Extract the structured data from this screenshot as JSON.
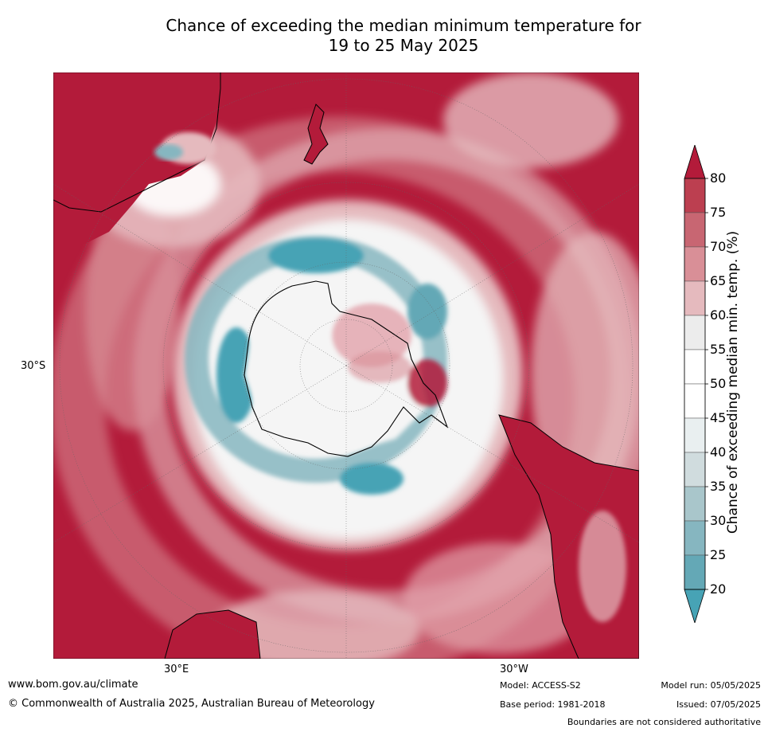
{
  "title_line1": "Chance of exceeding the median minimum temperature for",
  "title_line2": "19 to 25 May 2025",
  "map": {
    "projection": "south-polar-stereographic",
    "lat_labels": {
      "left": "30°S",
      "bottom_left": "30°E",
      "bottom_right": "30°W"
    },
    "colors": {
      "very_high": "#b31b3a",
      "high": "#c86672",
      "medium_high": "#e2a3ab",
      "near_median": "#f5f5f5",
      "low": "#c9dde0",
      "very_low": "#47a3b5",
      "land_outline": "#000000"
    }
  },
  "colorbar": {
    "label": "Chance of exceeding median min. temp. (%)",
    "ticks": [
      "80",
      "75",
      "70",
      "65",
      "60",
      "55",
      "50",
      "45",
      "40",
      "35",
      "30",
      "25",
      "20"
    ],
    "colors": [
      "#b31b3a",
      "#bc3f50",
      "#c86672",
      "#d98f97",
      "#e5babe",
      "#ececec",
      "#ffffff",
      "#ffffff",
      "#e9eff0",
      "#d0dcde",
      "#a9c6cb",
      "#86b6c0",
      "#64a8b6",
      "#47a3b5"
    ]
  },
  "footer": {
    "website": "www.bom.gov.au/climate",
    "copyright": "© Commonwealth of Australia 2025, Australian Bureau of Meteorology",
    "model": "Model: ACCESS-S2",
    "base_period": "Base period: 1981-2018",
    "model_run": "Model run: 05/05/2025",
    "issued": "Issued: 07/05/2025",
    "disclaimer": "Boundaries are not considered authoritative"
  }
}
